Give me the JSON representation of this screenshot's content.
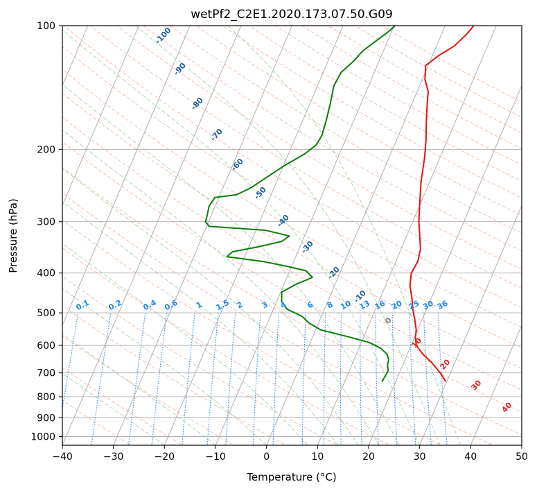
{
  "chart_data": {
    "type": "line",
    "title": "wetPf2_C2E1.2020.173.07.50.G09",
    "xlabel": "Temperature (°C)",
    "ylabel": "Pressure (hPa)",
    "xlim": [
      -40,
      50
    ],
    "ylim": [
      1050,
      100
    ],
    "y_scale": "log",
    "grid": true,
    "x_ticks": [
      -40,
      -30,
      -20,
      -10,
      0,
      10,
      20,
      30,
      40,
      50
    ],
    "x_tick_labels": [
      "−40",
      "−30",
      "−20",
      "−10",
      "0",
      "10",
      "20",
      "30",
      "40",
      "50"
    ],
    "y_ticks": [
      100,
      200,
      300,
      400,
      500,
      600,
      700,
      800,
      900,
      1000
    ],
    "y_tick_labels": [
      "100",
      "200",
      "300",
      "400",
      "500",
      "600",
      "700",
      "800",
      "900",
      "1000"
    ],
    "colors": {
      "temperature": "#e8120c",
      "dewpoint": "#0a7d0a",
      "dry_adiabat": "#f5a58c",
      "moist_adiabat": "#98cc98",
      "mixing_ratio": "#1e88e5",
      "isotherm": "#a8a8a8",
      "theta_e_label": "#1f5f9e",
      "theta_label_red": "#d62728",
      "theta_label_gray": "#808080"
    },
    "series": [
      {
        "role": "temperature",
        "points": [
          {
            "p": 735,
            "t": 29.8
          },
          {
            "p": 700,
            "t": 28.0
          },
          {
            "p": 660,
            "t": 25.4
          },
          {
            "p": 630,
            "t": 23.0
          },
          {
            "p": 600,
            "t": 21.0
          },
          {
            "p": 575,
            "t": 20.2
          },
          {
            "p": 550,
            "t": 19.7
          },
          {
            "p": 520,
            "t": 18.6
          },
          {
            "p": 490,
            "t": 17.3
          },
          {
            "p": 460,
            "t": 16.2
          },
          {
            "p": 430,
            "t": 14.8
          },
          {
            "p": 400,
            "t": 14.0
          },
          {
            "p": 375,
            "t": 14.3
          },
          {
            "p": 350,
            "t": 13.8
          },
          {
            "p": 320,
            "t": 12.3
          },
          {
            "p": 300,
            "t": 11.2
          },
          {
            "p": 270,
            "t": 9.8
          },
          {
            "p": 240,
            "t": 8.3
          },
          {
            "p": 210,
            "t": 7.0
          },
          {
            "p": 190,
            "t": 5.8
          },
          {
            "p": 170,
            "t": 4.2
          },
          {
            "p": 155,
            "t": 3.0
          },
          {
            "p": 145,
            "t": 2.2
          },
          {
            "p": 135,
            "t": 0.5
          },
          {
            "p": 125,
            "t": -0.5
          },
          {
            "p": 118,
            "t": 1.3
          },
          {
            "p": 112,
            "t": 3.5
          },
          {
            "p": 105,
            "t": 4.9
          },
          {
            "p": 100,
            "t": 5.6
          }
        ]
      },
      {
        "role": "dewpoint",
        "points": [
          {
            "p": 735,
            "t": 17.3
          },
          {
            "p": 710,
            "t": 17.5
          },
          {
            "p": 690,
            "t": 17.6
          },
          {
            "p": 670,
            "t": 17.0
          },
          {
            "p": 650,
            "t": 16.8
          },
          {
            "p": 630,
            "t": 16.0
          },
          {
            "p": 610,
            "t": 14.3
          },
          {
            "p": 590,
            "t": 11.5
          },
          {
            "p": 570,
            "t": 6.5
          },
          {
            "p": 550,
            "t": 1.0
          },
          {
            "p": 530,
            "t": -1.8
          },
          {
            "p": 510,
            "t": -3.8
          },
          {
            "p": 490,
            "t": -7.3
          },
          {
            "p": 470,
            "t": -9.0
          },
          {
            "p": 445,
            "t": -9.8
          },
          {
            "p": 425,
            "t": -7.5
          },
          {
            "p": 410,
            "t": -5.0
          },
          {
            "p": 395,
            "t": -6.8
          },
          {
            "p": 385,
            "t": -11.0
          },
          {
            "p": 375,
            "t": -16.0
          },
          {
            "p": 365,
            "t": -23.5
          },
          {
            "p": 355,
            "t": -22.8
          },
          {
            "p": 345,
            "t": -18.0
          },
          {
            "p": 335,
            "t": -14.0
          },
          {
            "p": 325,
            "t": -13.0
          },
          {
            "p": 315,
            "t": -18.0
          },
          {
            "p": 308,
            "t": -29.5
          },
          {
            "p": 300,
            "t": -30.6
          },
          {
            "p": 290,
            "t": -30.8
          },
          {
            "p": 275,
            "t": -31.2
          },
          {
            "p": 262,
            "t": -30.8
          },
          {
            "p": 258,
            "t": -26.8
          },
          {
            "p": 248,
            "t": -24.5
          },
          {
            "p": 235,
            "t": -22.5
          },
          {
            "p": 220,
            "t": -20.0
          },
          {
            "p": 205,
            "t": -16.8
          },
          {
            "p": 195,
            "t": -15.3
          },
          {
            "p": 185,
            "t": -15.0
          },
          {
            "p": 170,
            "t": -15.4
          },
          {
            "p": 155,
            "t": -16.0
          },
          {
            "p": 140,
            "t": -16.8
          },
          {
            "p": 130,
            "t": -16.5
          },
          {
            "p": 122,
            "t": -15.0
          },
          {
            "p": 115,
            "t": -14.0
          },
          {
            "p": 108,
            "t": -12.0
          },
          {
            "p": 103,
            "t": -10.5
          },
          {
            "p": 100,
            "t": -9.8
          }
        ]
      }
    ],
    "mixing_ratio_labels": [
      "0.1",
      "0.2",
      "0.4",
      "0.6",
      "1",
      "1.5",
      "2",
      "3",
      "4",
      "6",
      "8",
      "10",
      "13",
      "16",
      "20",
      "25",
      "30",
      "36"
    ],
    "theta_e_labels": [
      "-100",
      "-90",
      "-80",
      "-70",
      "-60",
      "-50",
      "-40",
      "-30",
      "-20",
      "-10"
    ],
    "theta_labels": [
      "0",
      "10",
      "20",
      "30",
      "40"
    ]
  }
}
